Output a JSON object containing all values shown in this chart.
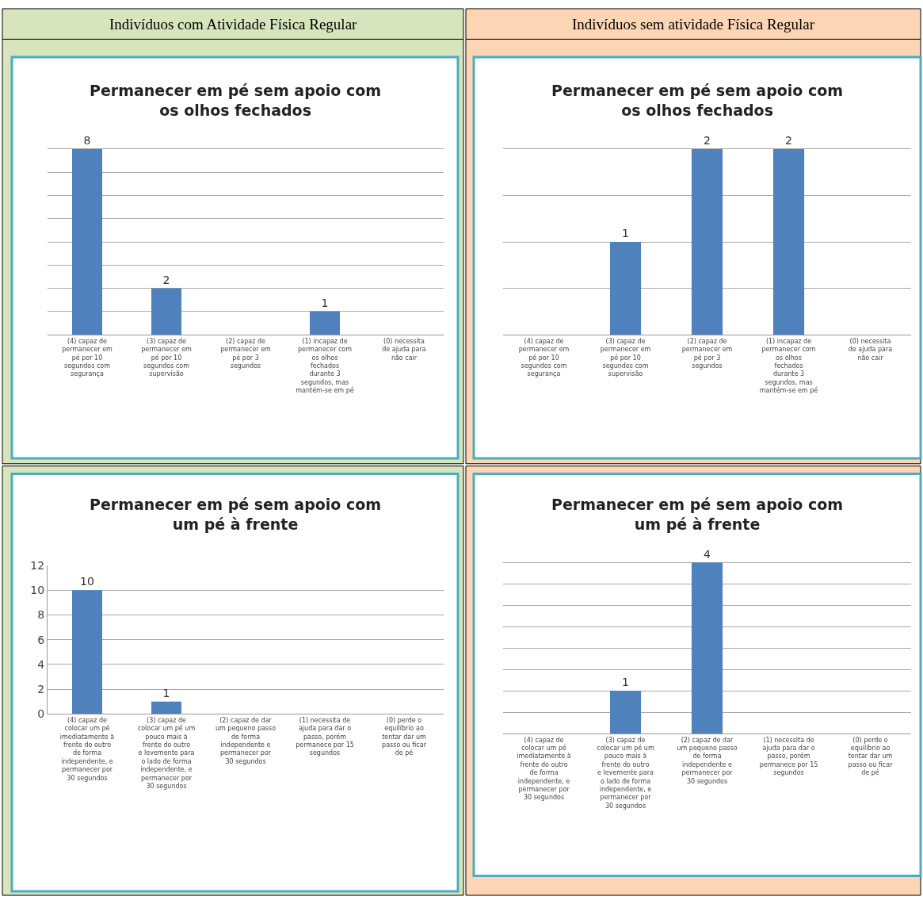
{
  "chart_data": [
    {
      "type": "bar",
      "title": "Permanecer em pé sem apoio com os olhos fechados",
      "annotations": [
        "Indivíduos com Atividade Física Regular"
      ],
      "categories": [
        "(4) capaz de permanecer em pé por 10 segundos com segurança",
        "(3) capaz de permanecer em pé por 10 segundos com supervisão",
        "(2) capaz de permanecer em pé por 3 segundos",
        "(1) incapaz de permanecer com os olhos fechados durante 3 segundos, mas mantém-se em pé",
        "(0) necessita de ajuda para não cair"
      ],
      "values": [
        8,
        2,
        0,
        1,
        0
      ],
      "value_labels": [
        "8",
        "2",
        null,
        "1",
        null
      ],
      "color": "#4f81bd",
      "grid": "y",
      "tick_labels": "x"
    },
    {
      "type": "bar",
      "title": "Permanecer em pé sem apoio com os olhos fechados",
      "annotations": [
        "Indivíduos sem atividade Física Regular"
      ],
      "categories": [
        "(4) capaz de permanecer em pé por 10 segundos com segurança",
        "(3) capaz de permanecer em pé por 10 segundos com supervisão",
        "(2) capaz de permanecer em pé por 3 segundos",
        "(1) incapaz de permanecer com os olhos fechados durante 3 segundos, mas mantém-se em pé",
        "(0) necessita de ajuda para não cair"
      ],
      "values": [
        0,
        1,
        2,
        2,
        0
      ],
      "value_labels": [
        null,
        "1",
        "2",
        "2",
        null
      ],
      "color": "#4f81bd",
      "grid": "y",
      "tick_labels": "x"
    },
    {
      "type": "bar",
      "title": "Permanecer em pé sem apoio com um pé à frente",
      "categories": [
        "(4) capaz de colocar um pé imediatamente à frente do outro de forma independente, e permanecer por 30 segundos",
        "(3) capaz de colocar um pé um pouco mais à frente do outro e levemente para o lado de forma independente, e permanecer por 30 segundos",
        "(2) capaz de dar um pequeno passo de forma independente e permanecer por 30 segundos",
        "(1) necessita de ajuda para dar o passo, porém permanece por 15 segundos",
        "(0) perde o equilíbrio ao tentar dar um passo ou ficar de pé"
      ],
      "values": [
        10,
        1,
        0,
        0,
        0
      ],
      "value_labels": [
        "10",
        "1",
        null,
        null,
        null
      ],
      "color": "#4f81bd",
      "ylim": [
        0,
        12
      ],
      "yticks": [
        0,
        2,
        4,
        6,
        8,
        10,
        12
      ],
      "grid": "y"
    },
    {
      "type": "bar",
      "title": "Permanecer em pé sem apoio com um pé à frente",
      "categories": [
        "(4) capaz de colocar um pé imediatamente à frente do outro de forma independente, e permanecer por 30 segundos",
        "(3) capaz de colocar um pé um pouco mais à frente do outro e levemente para o lado de forma independente, e permanecer por 30 segundos",
        "(2) capaz de dar um pequeno passo de forma independente e permanecer por 30 segundos",
        "(1) necessita de ajuda para dar o passo, porém permanece por 15 segundos",
        "(0) perde o equilíbrio ao tentar dar um passo ou ficar de pé"
      ],
      "values": [
        0,
        1,
        4,
        0,
        0
      ],
      "value_labels": [
        null,
        "1",
        "4",
        null,
        null
      ],
      "color": "#4f81bd",
      "grid": "y",
      "tick_labels": "x"
    }
  ]
}
